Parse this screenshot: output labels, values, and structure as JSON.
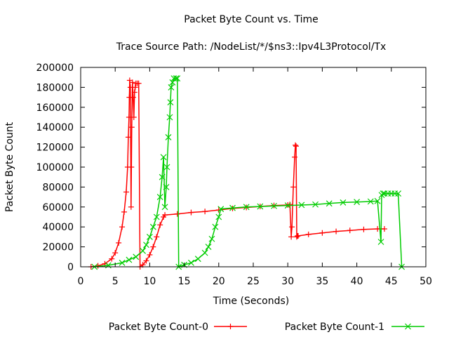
{
  "chart_data": {
    "type": "line",
    "title": "Packet Byte Count vs. Time",
    "subtitle": "Trace Source Path: /NodeList/*/$ns3::Ipv4L3Protocol/Tx",
    "xlabel": "Time (Seconds)",
    "ylabel": "Packet Byte Count",
    "xlim": [
      0,
      50
    ],
    "ylim": [
      0,
      200000
    ],
    "xticks": [
      0,
      5,
      10,
      15,
      20,
      25,
      30,
      35,
      40,
      45,
      50
    ],
    "yticks": [
      0,
      20000,
      40000,
      60000,
      80000,
      100000,
      120000,
      140000,
      160000,
      180000,
      200000
    ],
    "grid": false,
    "legend_position": "bottom",
    "series": [
      {
        "name": "Packet Byte Count-0",
        "color": "#ff0000",
        "marker": "plus",
        "x": [
          1.5,
          2.5,
          3.5,
          4.5,
          5.0,
          5.5,
          6.0,
          6.3,
          6.6,
          6.8,
          6.9,
          7.0,
          7.05,
          7.1,
          7.2,
          7.3,
          7.35,
          7.4,
          7.5,
          7.6,
          7.7,
          7.8,
          7.9,
          8.0,
          8.2,
          8.4,
          8.6,
          9.0,
          9.5,
          10.0,
          10.5,
          11.0,
          11.5,
          12.0,
          12.2,
          14.0,
          16.0,
          18.0,
          20.0,
          22.0,
          24.0,
          26.0,
          28.0,
          30.0,
          30.3,
          30.5,
          30.6,
          30.8,
          31.0,
          31.1,
          31.2,
          31.3,
          31.4,
          31.5,
          33.0,
          35.0,
          37.0,
          39.0,
          41.0,
          43.0,
          44.0
        ],
        "y": [
          0,
          1000,
          3000,
          8000,
          14000,
          24000,
          40000,
          55000,
          75000,
          100000,
          130000,
          150000,
          170000,
          187000,
          180000,
          60000,
          100000,
          140000,
          185000,
          170000,
          150000,
          175000,
          180000,
          184000,
          184000,
          184000,
          0,
          2000,
          6000,
          12000,
          20000,
          30000,
          42000,
          50000,
          52000,
          53000,
          54500,
          55500,
          57000,
          58500,
          59500,
          60500,
          61500,
          62000,
          62500,
          30000,
          40000,
          80000,
          110000,
          122000,
          121000,
          30000,
          31000,
          31000,
          32500,
          34000,
          35500,
          36500,
          37500,
          38000,
          38000
        ]
      },
      {
        "name": "Packet Byte Count-1",
        "color": "#00cc00",
        "marker": "x",
        "x": [
          2.0,
          4.0,
          6.0,
          7.0,
          8.0,
          9.0,
          9.5,
          10.0,
          10.5,
          11.0,
          11.5,
          11.8,
          12.0,
          12.2,
          12.4,
          12.5,
          12.7,
          12.9,
          13.0,
          13.1,
          13.3,
          13.5,
          13.8,
          14.0,
          14.2,
          15.0,
          16.0,
          17.0,
          18.0,
          18.5,
          19.0,
          19.5,
          20.0,
          20.3,
          22.0,
          24.0,
          26.0,
          28.0,
          30.0,
          32.0,
          34.0,
          36.0,
          38.0,
          40.0,
          42.0,
          43.0,
          43.5,
          43.6,
          43.8,
          44.0,
          44.5,
          45.0,
          45.5,
          46.0,
          46.5
        ],
        "y": [
          0,
          1500,
          4000,
          7000,
          10000,
          16000,
          22000,
          30000,
          40000,
          50000,
          70000,
          90000,
          110000,
          60000,
          80000,
          100000,
          130000,
          150000,
          165000,
          180000,
          185000,
          189000,
          189000,
          189000,
          0,
          2000,
          4000,
          8000,
          14000,
          20000,
          28000,
          40000,
          50000,
          58000,
          59000,
          60000,
          60500,
          61000,
          61500,
          62000,
          62500,
          63500,
          64500,
          65000,
          65500,
          66000,
          25000,
          72000,
          73500,
          73500,
          73500,
          73500,
          73500,
          73500,
          0
        ]
      }
    ]
  }
}
